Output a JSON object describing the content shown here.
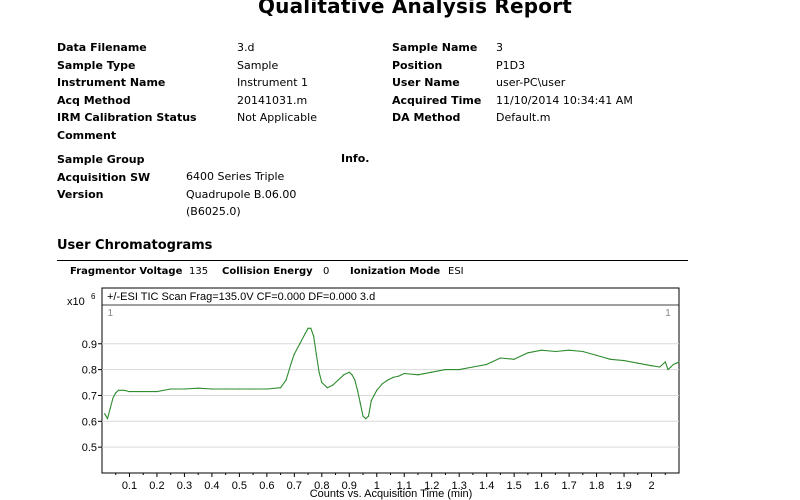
{
  "report": {
    "title": "Qualitative Analysis Report"
  },
  "left_fields": [
    {
      "label": "Data Filename",
      "value": "3.d"
    },
    {
      "label": "Sample Type",
      "value": "Sample"
    },
    {
      "label": "Instrument Name",
      "value": "Instrument 1"
    },
    {
      "label": "Acq Method",
      "value": "20141031.m"
    },
    {
      "label": "IRM Calibration Status",
      "value": "Not Applicable"
    },
    {
      "label": "Comment",
      "value": ""
    }
  ],
  "right_fields": [
    {
      "label": "Sample Name",
      "value": "3"
    },
    {
      "label": "Position",
      "value": "P1D3"
    },
    {
      "label": "User Name",
      "value": "user-PC\\user"
    },
    {
      "label": "Acquired Time",
      "value": "11/10/2014 10:34:41 AM"
    },
    {
      "label": "DA Method",
      "value": "Default.m"
    }
  ],
  "group": {
    "sample_group_label": "Sample Group",
    "info_label": "Info.",
    "acq_sw_label_1": "Acquisition SW",
    "acq_sw_label_2": "Version",
    "acq_sw_value_1": "6400 Series Triple",
    "acq_sw_value_2": "Quadrupole B.06.00",
    "acq_sw_value_3": "(B6025.0)"
  },
  "chromatograms": {
    "section_title": "User Chromatograms",
    "fragmentor_label": "Fragmentor Voltage",
    "fragmentor_value": "135",
    "collision_label": "Collision Energy",
    "collision_value": "0",
    "ionization_label": "Ionization Mode",
    "ionization_value": "ESI"
  },
  "chart_data": {
    "type": "line",
    "title": "+/-ESI TIC Scan Frag=135.0V CF=0.000 DF=0.000 3.d",
    "xlabel": "Counts vs. Acquisition Time (min)",
    "ylabel": "",
    "y_multiplier_label": "x10",
    "y_multiplier_exp": "6",
    "xlim": [
      0,
      2.1
    ],
    "ylim": [
      0.4,
      1.05
    ],
    "x_ticks": [
      0.1,
      0.2,
      0.3,
      0.4,
      0.5,
      0.6,
      0.7,
      0.8,
      0.9,
      1,
      1.1,
      1.2,
      1.3,
      1.4,
      1.5,
      1.6,
      1.7,
      1.8,
      1.9,
      2
    ],
    "x_tick_labels": [
      "0.1",
      "0.2",
      "0.3",
      "0.4",
      "0.5",
      "0.6",
      "0.7",
      "0.8",
      "0.9",
      "1",
      "1.1",
      "1.2",
      "1.3",
      "1.4",
      "1.5",
      "1.6",
      "1.7",
      "1.8",
      "1.9",
      "2"
    ],
    "y_ticks": [
      0.5,
      0.6,
      0.7,
      0.8,
      0.9
    ],
    "y_tick_labels": [
      "0.5",
      "0.6",
      "0.7",
      "0.8",
      "0.9"
    ],
    "markers": [
      {
        "label": "1",
        "x": 0.03
      },
      {
        "label": "1",
        "x": 2.06
      }
    ],
    "line_color": "#2e8b2e",
    "series": [
      {
        "x": [
          0.01,
          0.02,
          0.03,
          0.04,
          0.05,
          0.06,
          0.08,
          0.1,
          0.15,
          0.2,
          0.25,
          0.3,
          0.35,
          0.4,
          0.45,
          0.5,
          0.55,
          0.6,
          0.65,
          0.67,
          0.69,
          0.7,
          0.72,
          0.74,
          0.75,
          0.76,
          0.77,
          0.78,
          0.79,
          0.8,
          0.82,
          0.84,
          0.86,
          0.88,
          0.9,
          0.91,
          0.92,
          0.93,
          0.94,
          0.95,
          0.96,
          0.97,
          0.98,
          0.99,
          1,
          1.02,
          1.04,
          1.06,
          1.08,
          1.1,
          1.15,
          1.2,
          1.25,
          1.3,
          1.35,
          1.4,
          1.45,
          1.5,
          1.55,
          1.6,
          1.65,
          1.7,
          1.75,
          1.8,
          1.85,
          1.9,
          1.95,
          2,
          2.03,
          2.05,
          2.06,
          2.07,
          2.08,
          2.09,
          2.1
        ],
        "y": [
          0.63,
          0.61,
          0.65,
          0.69,
          0.71,
          0.72,
          0.72,
          0.715,
          0.715,
          0.715,
          0.725,
          0.725,
          0.728,
          0.725,
          0.725,
          0.725,
          0.725,
          0.725,
          0.73,
          0.76,
          0.83,
          0.86,
          0.9,
          0.94,
          0.96,
          0.96,
          0.93,
          0.86,
          0.79,
          0.75,
          0.73,
          0.74,
          0.76,
          0.78,
          0.79,
          0.78,
          0.76,
          0.72,
          0.67,
          0.62,
          0.61,
          0.62,
          0.68,
          0.7,
          0.72,
          0.745,
          0.76,
          0.77,
          0.775,
          0.785,
          0.78,
          0.79,
          0.8,
          0.8,
          0.81,
          0.82,
          0.845,
          0.84,
          0.865,
          0.875,
          0.87,
          0.875,
          0.87,
          0.855,
          0.84,
          0.835,
          0.825,
          0.815,
          0.81,
          0.83,
          0.8,
          0.81,
          0.82,
          0.825,
          0.83
        ]
      }
    ]
  }
}
